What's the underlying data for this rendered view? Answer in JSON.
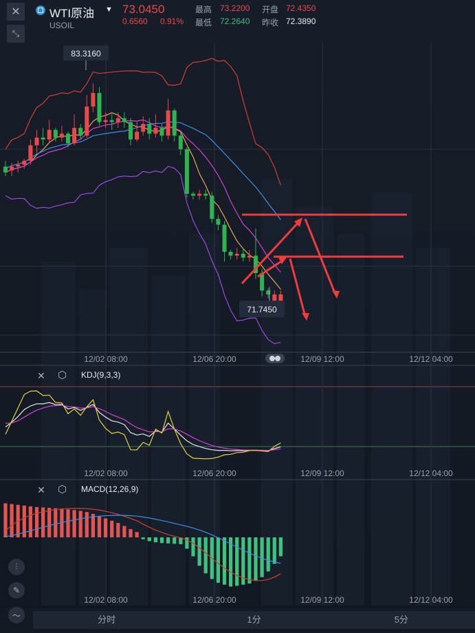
{
  "header": {
    "symbol_name": "WTI原油",
    "symbol_code": "USOIL",
    "price": "73.0450",
    "change": "0.6560",
    "change_pct": "0.91%",
    "high_label": "最高",
    "high_value": "73.2200",
    "open_label": "开盘",
    "open_value": "72.4350",
    "low_label": "最低",
    "low_value": "72.2640",
    "prev_label": "昨收",
    "prev_value": "72.3890"
  },
  "indicators": {
    "kdj_label": "KDJ(9,3,3)",
    "macd_label": "MACD(12,26,9)"
  },
  "tabs": [
    "分时",
    "1分",
    "5分"
  ],
  "colors": {
    "up": "#e8494a",
    "down": "#2fb34f",
    "bg": "#141a24"
  },
  "chart_data": {
    "type": "candlestick",
    "x_ticks": [
      "12/02 08:00",
      "12/06 20:00",
      "12/09 12:00",
      "12/12 04:00"
    ],
    "price_labels": {
      "max": "83.3160",
      "min": "71.7450"
    },
    "price_range": [
      70.9,
      86.0
    ],
    "candles": [
      [
        79.6,
        79.3,
        79.9,
        79.1
      ],
      [
        79.4,
        79.6,
        79.8,
        79.1
      ],
      [
        79.6,
        79.7,
        79.9,
        79.3
      ],
      [
        79.7,
        79.9,
        80.0,
        79.5
      ],
      [
        79.9,
        80.7,
        81.0,
        79.7
      ],
      [
        80.7,
        81.1,
        81.5,
        80.3
      ],
      [
        81.1,
        81.0,
        81.6,
        80.7
      ],
      [
        81.0,
        81.5,
        82.0,
        80.8
      ],
      [
        81.5,
        81.1,
        81.6,
        80.9
      ],
      [
        81.1,
        81.3,
        81.7,
        80.9
      ],
      [
        81.3,
        80.8,
        81.4,
        80.6
      ],
      [
        80.8,
        81.6,
        82.3,
        80.7
      ],
      [
        81.6,
        81.2,
        81.8,
        81.0
      ],
      [
        81.2,
        82.7,
        83.3,
        81.1
      ],
      [
        82.7,
        83.4,
        83.9,
        82.4
      ],
      [
        83.4,
        81.9,
        83.7,
        81.7
      ],
      [
        81.9,
        82.0,
        82.4,
        81.6
      ],
      [
        82.0,
        81.9,
        82.3,
        81.5
      ],
      [
        81.9,
        82.1,
        82.4,
        81.6
      ],
      [
        82.1,
        81.9,
        82.4,
        81.6
      ],
      [
        81.9,
        81.0,
        82.1,
        80.7
      ],
      [
        81.0,
        81.4,
        81.9,
        80.9
      ],
      [
        81.4,
        81.8,
        82.2,
        81.2
      ],
      [
        81.8,
        81.3,
        82.1,
        81.0
      ],
      [
        81.3,
        81.6,
        82.3,
        81.1
      ],
      [
        81.6,
        81.2,
        81.8,
        80.9
      ],
      [
        81.2,
        82.5,
        83.1,
        81.0
      ],
      [
        82.5,
        81.2,
        82.6,
        80.9
      ],
      [
        81.2,
        80.5,
        81.4,
        80.2
      ],
      [
        80.5,
        78.2,
        80.6,
        78.0
      ],
      [
        78.2,
        78.1,
        78.3,
        77.9
      ],
      [
        78.1,
        78.2,
        78.4,
        77.9
      ],
      [
        78.2,
        78.1,
        78.4,
        77.9
      ],
      [
        78.1,
        76.9,
        78.3,
        76.7
      ],
      [
        76.9,
        76.6,
        77.1,
        76.3
      ],
      [
        76.6,
        75.2,
        76.8,
        74.7
      ],
      [
        75.2,
        75.0,
        75.3,
        74.8
      ],
      [
        75.0,
        75.1,
        75.4,
        74.8
      ],
      [
        75.1,
        74.9,
        75.4,
        74.7
      ],
      [
        74.9,
        75.0,
        75.3,
        74.7
      ],
      [
        75.0,
        74.1,
        76.4,
        73.8
      ],
      [
        74.1,
        73.2,
        74.3,
        72.9
      ],
      [
        73.2,
        73.0,
        73.3,
        72.8
      ],
      [
        72.4,
        73.0,
        73.2,
        72.3
      ],
      [
        72.6,
        73.0,
        73.2,
        72.4
      ]
    ],
    "kdj_ticks": [
      "12/02 08:00",
      "12/06 20:00",
      "12/09 12:00",
      "12/12 04:00"
    ],
    "macd_ticks": [
      "12/02 08:00",
      "12/06 20:00",
      "12/09 12:00",
      "12/12 04:00"
    ],
    "macd_hist": [
      0.9,
      0.88,
      0.86,
      0.84,
      0.82,
      0.8,
      0.79,
      0.78,
      0.77,
      0.76,
      0.74,
      0.72,
      0.7,
      0.67,
      0.62,
      0.56,
      0.5,
      0.44,
      0.38,
      0.3,
      0.22,
      0.14,
      -0.05,
      -0.1,
      -0.13,
      -0.15,
      -0.16,
      -0.17,
      -0.18,
      -0.3,
      -0.5,
      -0.75,
      -0.95,
      -1.1,
      -1.2,
      -1.25,
      -1.3,
      -1.28,
      -1.25,
      -1.22,
      -1.15,
      -1.05,
      -0.9,
      -0.7,
      -0.5
    ]
  }
}
